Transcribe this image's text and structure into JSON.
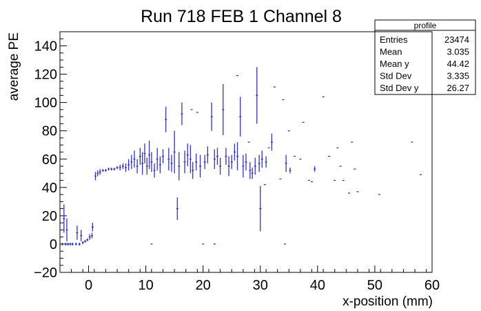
{
  "chart_data": {
    "type": "scatter",
    "title": "Run 718 FEB 1 Channel 8",
    "xlabel": "x-position (mm)",
    "ylabel": "average PE",
    "xlim": [
      -5,
      60
    ],
    "ylim": [
      -20,
      150
    ],
    "x_ticks": [
      "0",
      "10",
      "20",
      "30",
      "40",
      "50",
      "60"
    ],
    "y_ticks": [
      "−20",
      "0",
      "20",
      "40",
      "60",
      "80",
      "100",
      "120",
      "140"
    ],
    "marker_color": "#3333aa",
    "stats": {
      "title": "profile",
      "rows": [
        {
          "label": "Entries",
          "value": "23474"
        },
        {
          "label": "Mean",
          "value": "3.035"
        },
        {
          "label": "Mean y",
          "value": "44.42"
        },
        {
          "label": "Std Dev",
          "value": "3.335"
        },
        {
          "label": "Std Dev y",
          "value": "26.27"
        }
      ]
    },
    "points": [
      {
        "x": -4.6,
        "y": 0,
        "err": 1
      },
      {
        "x": -4.0,
        "y": 0,
        "err": 1
      },
      {
        "x": -3.6,
        "y": 0,
        "err": 1
      },
      {
        "x": -3.2,
        "y": 0,
        "err": 1
      },
      {
        "x": -2.8,
        "y": 0,
        "err": 1
      },
      {
        "x": -2.2,
        "y": 0,
        "err": 1
      },
      {
        "x": -1.6,
        "y": 0,
        "err": 1
      },
      {
        "x": -1.0,
        "y": 1,
        "err": 1
      },
      {
        "x": -0.6,
        "y": 2,
        "err": 1
      },
      {
        "x": -0.2,
        "y": 3,
        "err": 1
      },
      {
        "x": 0.2,
        "y": 5,
        "err": 2
      },
      {
        "x": 0.6,
        "y": 6,
        "err": 2
      },
      {
        "x": -4.3,
        "y": 18,
        "err": 10
      },
      {
        "x": -3.8,
        "y": 10,
        "err": 8
      },
      {
        "x": -2.0,
        "y": 8,
        "err": 5
      },
      {
        "x": -1.3,
        "y": 6,
        "err": 4
      },
      {
        "x": 0.7,
        "y": 12,
        "err": 3
      },
      {
        "x": 1.2,
        "y": 48,
        "err": 3
      },
      {
        "x": 1.6,
        "y": 50,
        "err": 2
      },
      {
        "x": 2.0,
        "y": 51,
        "err": 2
      },
      {
        "x": 2.5,
        "y": 52,
        "err": 1
      },
      {
        "x": 3.0,
        "y": 52,
        "err": 1
      },
      {
        "x": 3.5,
        "y": 53,
        "err": 1
      },
      {
        "x": 4.0,
        "y": 53,
        "err": 1
      },
      {
        "x": 4.5,
        "y": 53,
        "err": 1
      },
      {
        "x": 5.0,
        "y": 54,
        "err": 1
      },
      {
        "x": 5.5,
        "y": 54,
        "err": 2
      },
      {
        "x": 6.0,
        "y": 55,
        "err": 2
      },
      {
        "x": 6.5,
        "y": 54,
        "err": 3
      },
      {
        "x": 7.0,
        "y": 56,
        "err": 4
      },
      {
        "x": 7.5,
        "y": 58,
        "err": 5
      },
      {
        "x": 8.0,
        "y": 60,
        "err": 6
      },
      {
        "x": 8.5,
        "y": 55,
        "err": 5
      },
      {
        "x": 9.0,
        "y": 62,
        "err": 6
      },
      {
        "x": 9.4,
        "y": 57,
        "err": 8
      },
      {
        "x": 9.8,
        "y": 64,
        "err": 7
      },
      {
        "x": 10.2,
        "y": 55,
        "err": 6
      },
      {
        "x": 10.6,
        "y": 63,
        "err": 10
      },
      {
        "x": 11.0,
        "y": 58,
        "err": 7
      },
      {
        "x": 11.5,
        "y": 52,
        "err": 5
      },
      {
        "x": 12.0,
        "y": 60,
        "err": 8
      },
      {
        "x": 12.5,
        "y": 56,
        "err": 6
      },
      {
        "x": 13.0,
        "y": 62,
        "err": 5
      },
      {
        "x": 13.5,
        "y": 88,
        "err": 9
      },
      {
        "x": 14.0,
        "y": 60,
        "err": 8
      },
      {
        "x": 14.5,
        "y": 57,
        "err": 6
      },
      {
        "x": 15.0,
        "y": 65,
        "err": 15
      },
      {
        "x": 15.5,
        "y": 25,
        "err": 8
      },
      {
        "x": 15.8,
        "y": 55,
        "err": 10
      },
      {
        "x": 16.3,
        "y": 92,
        "err": 8
      },
      {
        "x": 16.8,
        "y": 58,
        "err": 8
      },
      {
        "x": 17.3,
        "y": 63,
        "err": 8
      },
      {
        "x": 17.8,
        "y": 60,
        "err": 10
      },
      {
        "x": 18.2,
        "y": 52,
        "err": 6
      },
      {
        "x": 18.8,
        "y": 58,
        "err": 6
      },
      {
        "x": 19.5,
        "y": 55,
        "err": 8
      },
      {
        "x": 20.3,
        "y": 58,
        "err": 5
      },
      {
        "x": 20.8,
        "y": 63,
        "err": 6
      },
      {
        "x": 21.5,
        "y": 90,
        "err": 10
      },
      {
        "x": 22.0,
        "y": 60,
        "err": 7
      },
      {
        "x": 22.5,
        "y": 62,
        "err": 6
      },
      {
        "x": 23.0,
        "y": 55,
        "err": 6
      },
      {
        "x": 23.5,
        "y": 95,
        "err": 18
      },
      {
        "x": 24.0,
        "y": 62,
        "err": 6
      },
      {
        "x": 24.5,
        "y": 55,
        "err": 7
      },
      {
        "x": 25.0,
        "y": 58,
        "err": 5
      },
      {
        "x": 25.5,
        "y": 65,
        "err": 6
      },
      {
        "x": 26.0,
        "y": 62,
        "err": 10
      },
      {
        "x": 26.5,
        "y": 90,
        "err": 14
      },
      {
        "x": 27.0,
        "y": 55,
        "err": 8
      },
      {
        "x": 27.5,
        "y": 58,
        "err": 6
      },
      {
        "x": 28.2,
        "y": 52,
        "err": 6
      },
      {
        "x": 28.6,
        "y": 50,
        "err": 4
      },
      {
        "x": 29.1,
        "y": 55,
        "err": 6
      },
      {
        "x": 29.4,
        "y": 105,
        "err": 20
      },
      {
        "x": 29.8,
        "y": 57,
        "err": 6
      },
      {
        "x": 30.0,
        "y": 25,
        "err": 16
      },
      {
        "x": 30.3,
        "y": 60,
        "err": 6
      },
      {
        "x": 31.0,
        "y": 58,
        "err": 4
      },
      {
        "x": 32.0,
        "y": 72,
        "err": 6
      },
      {
        "x": 34.5,
        "y": 57,
        "err": 6
      },
      {
        "x": 35.2,
        "y": 52,
        "err": 2
      },
      {
        "x": 39.5,
        "y": 53,
        "err": 2
      },
      {
        "x": 11.0,
        "y": 0,
        "err": 0
      },
      {
        "x": 20.0,
        "y": 0,
        "err": 0
      },
      {
        "x": 22.0,
        "y": 0,
        "err": 0
      },
      {
        "x": 34.3,
        "y": 0,
        "err": 0
      },
      {
        "x": 32.5,
        "y": 111,
        "err": 0
      },
      {
        "x": 34.0,
        "y": 102,
        "err": 0
      },
      {
        "x": 41.0,
        "y": 104,
        "err": 0
      },
      {
        "x": 37.5,
        "y": 86,
        "err": 0
      },
      {
        "x": 35.0,
        "y": 80,
        "err": 0
      },
      {
        "x": 43.5,
        "y": 68,
        "err": 0
      },
      {
        "x": 46.0,
        "y": 72,
        "err": 0
      },
      {
        "x": 56.5,
        "y": 72,
        "err": 0
      },
      {
        "x": 42.0,
        "y": 62,
        "err": 0
      },
      {
        "x": 44.0,
        "y": 55,
        "err": 0
      },
      {
        "x": 46.5,
        "y": 53,
        "err": 0
      },
      {
        "x": 36.0,
        "y": 62,
        "err": 0
      },
      {
        "x": 37.0,
        "y": 60,
        "err": 0
      },
      {
        "x": 38.5,
        "y": 45,
        "err": 0
      },
      {
        "x": 39.0,
        "y": 44,
        "err": 0
      },
      {
        "x": 43.0,
        "y": 45,
        "err": 0
      },
      {
        "x": 44.5,
        "y": 45,
        "err": 0
      },
      {
        "x": 45.5,
        "y": 36,
        "err": 0
      },
      {
        "x": 47.0,
        "y": 37,
        "err": 0
      },
      {
        "x": 50.8,
        "y": 35,
        "err": 0
      },
      {
        "x": 58.0,
        "y": 49,
        "err": 0
      },
      {
        "x": 33.5,
        "y": 46,
        "err": 0
      },
      {
        "x": 30.8,
        "y": 42,
        "err": 0
      },
      {
        "x": 26.0,
        "y": 119,
        "err": 0
      },
      {
        "x": 18.0,
        "y": 95,
        "err": 0
      },
      {
        "x": 19.0,
        "y": 93,
        "err": 0
      },
      {
        "x": 28.0,
        "y": 72,
        "err": 0
      },
      {
        "x": 31.5,
        "y": 68,
        "err": 0
      }
    ]
  }
}
